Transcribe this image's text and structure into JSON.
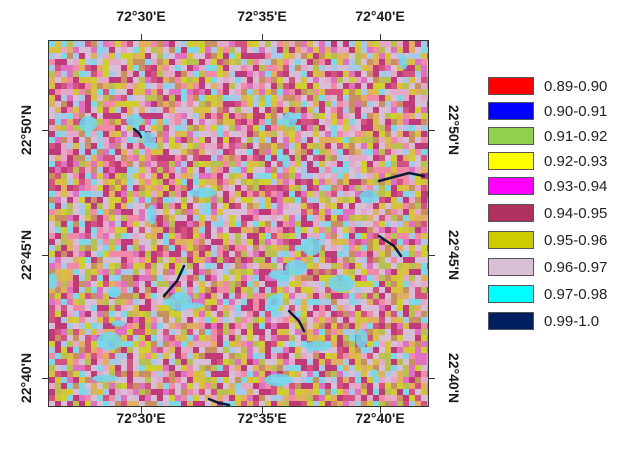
{
  "map": {
    "lon_labels": [
      "72°30'E",
      "72°35'E",
      "72°40'E"
    ],
    "lat_labels": [
      "22°50'N",
      "22°45'N",
      "22°40'N"
    ]
  },
  "legend": {
    "items": [
      {
        "label": "0.89-0.90",
        "color": "#ff0000"
      },
      {
        "label": "0.90-0.91",
        "color": "#0000ff"
      },
      {
        "label": "0.91-0.92",
        "color": "#92d050"
      },
      {
        "label": "0.92-0.93",
        "color": "#ffff00"
      },
      {
        "label": "0.93-0.94",
        "color": "#ff00ff"
      },
      {
        "label": "0.94-0.95",
        "color": "#b03060"
      },
      {
        "label": "0.95-0.96",
        "color": "#cccc00"
      },
      {
        "label": "0.96-0.97",
        "color": "#d8bfd8"
      },
      {
        "label": "0.97-0.98",
        "color": "#00ffff"
      },
      {
        "label": "0.99-1.0",
        "color": "#002060"
      }
    ]
  }
}
